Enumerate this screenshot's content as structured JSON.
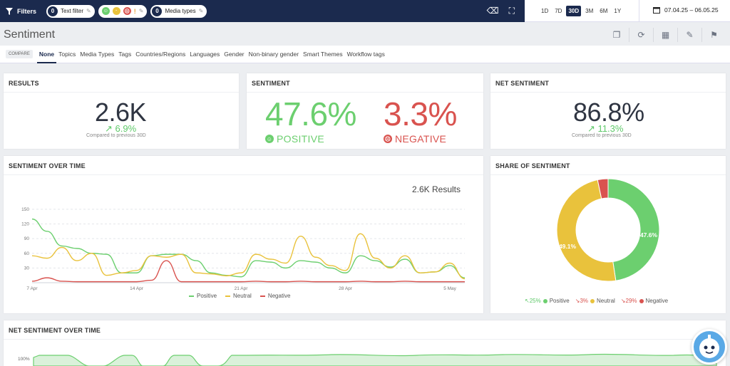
{
  "topbar": {
    "filters_label": "Filters",
    "text_filter": {
      "count": "0",
      "label": "Text filter"
    },
    "sentiment_filter": {
      "icons": [
        "positive-face-icon",
        "neutral-face-icon",
        "negative-face-icon",
        "exclamation-icon"
      ]
    },
    "media_types": {
      "count": "0",
      "label": "Media types"
    }
  },
  "datebar": {
    "ranges": [
      "1D",
      "7D",
      "30D",
      "3M",
      "6M",
      "1Y"
    ],
    "active_range": "30D",
    "date_range": "07.04.25 – 06.05.25"
  },
  "page": {
    "title": "Sentiment"
  },
  "compare": {
    "label": "COMPARE",
    "tabs": [
      "None",
      "Topics",
      "Media Types",
      "Tags",
      "Countries/Regions",
      "Languages",
      "Gender",
      "Non-binary gender",
      "Smart Themes",
      "Workflow tags"
    ],
    "active": "None"
  },
  "results": {
    "title": "RESULTS",
    "value": "2.6K",
    "delta": "6.9%",
    "compared": "Compared to previous 30D"
  },
  "sentiment": {
    "title": "SENTIMENT",
    "positive_value": "47.6%",
    "positive_label": "POSITIVE",
    "negative_value": "3.3%",
    "negative_label": "NEGATIVE"
  },
  "net_sentiment": {
    "title": "NET SENTIMENT",
    "value": "86.8%",
    "delta": "11.3%",
    "compared": "Compared to previous 30D"
  },
  "sentiment_over_time": {
    "title": "SENTIMENT OVER TIME",
    "results_note": "2.6K Results"
  },
  "share": {
    "title": "SHARE OF SENTIMENT",
    "legend": [
      {
        "change": "25%",
        "name": "Positive"
      },
      {
        "change": "3%",
        "name": "Neutral"
      },
      {
        "change": "29%",
        "name": "Negative"
      }
    ]
  },
  "net_over_time": {
    "title": "NET SENTIMENT OVER TIME",
    "y_tick": "100%"
  },
  "colors": {
    "positive": "#6ccf6f",
    "neutral": "#e9c23c",
    "negative": "#d9534f",
    "navy": "#1b2a4e"
  },
  "chart_data": [
    {
      "type": "line",
      "yticks": [
        30,
        60,
        90,
        120,
        150
      ],
      "ylim": [
        0,
        160
      ],
      "xlim": [
        0,
        29
      ],
      "xticks": [
        {
          "x": 0,
          "label": "7 Apr"
        },
        {
          "x": 7,
          "label": "14 Apr"
        },
        {
          "x": 14,
          "label": "21 Apr"
        },
        {
          "x": 21,
          "label": "28 Apr"
        },
        {
          "x": 28,
          "label": "5 May"
        }
      ],
      "series": [
        {
          "name": "Positive",
          "color": "#6ccf6f",
          "values": [
            130,
            105,
            75,
            70,
            60,
            58,
            20,
            20,
            55,
            58,
            58,
            45,
            20,
            15,
            12,
            45,
            42,
            30,
            45,
            42,
            30,
            20,
            55,
            45,
            32,
            48,
            20,
            22,
            35,
            10
          ]
        },
        {
          "name": "Neutral",
          "color": "#e9c23c",
          "values": [
            55,
            50,
            72,
            45,
            60,
            15,
            20,
            25,
            55,
            52,
            58,
            20,
            18,
            14,
            20,
            58,
            48,
            40,
            95,
            52,
            35,
            25,
            100,
            50,
            30,
            55,
            20,
            22,
            40,
            8
          ]
        },
        {
          "name": "Negative",
          "color": "#d9534f",
          "values": [
            3,
            10,
            3,
            2,
            2,
            2,
            2,
            2,
            5,
            45,
            2,
            2,
            2,
            2,
            2,
            3,
            2,
            2,
            3,
            2,
            2,
            2,
            3,
            2,
            2,
            3,
            2,
            2,
            2,
            2
          ]
        }
      ]
    },
    {
      "type": "pie",
      "slices": [
        {
          "name": "Positive",
          "value": 47.6,
          "label": "47.6%",
          "color": "#6ccf6f"
        },
        {
          "name": "Neutral",
          "value": 49.1,
          "label": "49.1%",
          "color": "#e9c23c"
        },
        {
          "name": "Negative",
          "value": 3.3,
          "label": "",
          "color": "#d9534f"
        }
      ]
    }
  ]
}
